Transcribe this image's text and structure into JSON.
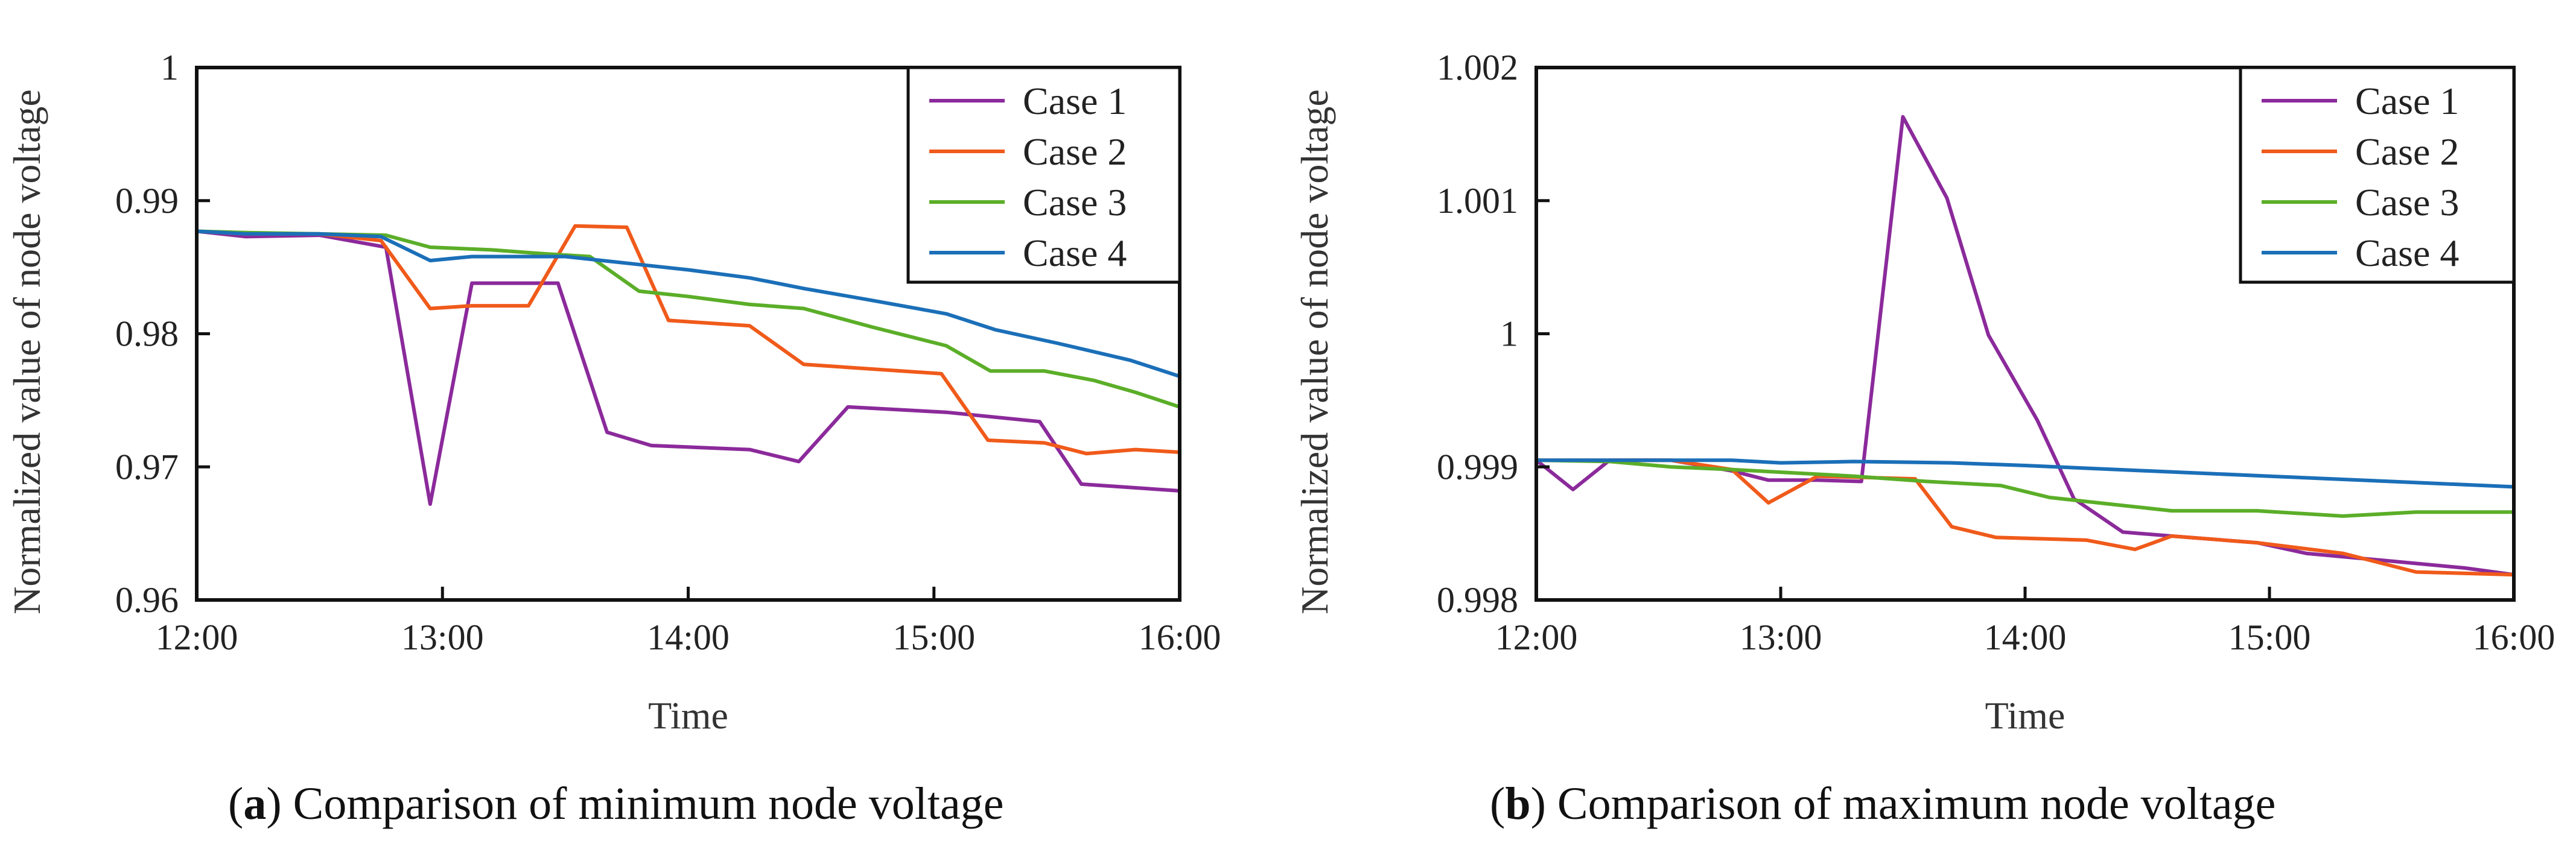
{
  "chart_data": [
    {
      "type": "line",
      "caption": {
        "letter": "a",
        "text": "Comparison of minimum node voltage"
      },
      "xlabel": "Time",
      "ylabel": "Normalized value of node voltage",
      "xlim": [
        12,
        16
      ],
      "ylim": [
        0.96,
        1
      ],
      "xticks": [
        {
          "value": 12,
          "label": "12:00"
        },
        {
          "value": 13,
          "label": "13:00"
        },
        {
          "value": 14,
          "label": "14:00"
        },
        {
          "value": 15,
          "label": "15:00"
        },
        {
          "value": 16,
          "label": "16:00"
        }
      ],
      "yticks": [
        {
          "value": 0.96,
          "label": "0.96"
        },
        {
          "value": 0.97,
          "label": "0.97"
        },
        {
          "value": 0.98,
          "label": "0.98"
        },
        {
          "value": 0.99,
          "label": "0.99"
        },
        {
          "value": 1,
          "label": "1"
        }
      ],
      "legend_position": "top-right",
      "series": [
        {
          "name": "Case 1",
          "color": "#8B2A9B",
          "x": [
            12,
            12.2,
            12.5,
            12.77,
            12.95,
            13.12,
            13.47,
            13.67,
            13.85,
            14.25,
            14.45,
            14.65,
            15.05,
            15.43,
            15.6,
            16
          ],
          "y": [
            0.9877,
            0.9873,
            0.9874,
            0.9865,
            0.9672,
            0.9838,
            0.9838,
            0.9726,
            0.9716,
            0.9713,
            0.9704,
            0.9745,
            0.9741,
            0.9734,
            0.9687,
            0.9682
          ]
        },
        {
          "name": "Case 2",
          "color": "#F05A1A",
          "x": [
            12,
            12.2,
            12.5,
            12.75,
            12.95,
            13.12,
            13.35,
            13.54,
            13.75,
            13.92,
            14.25,
            14.47,
            15.03,
            15.22,
            15.45,
            15.62,
            15.82,
            16
          ],
          "y": [
            0.9877,
            0.9875,
            0.9875,
            0.987,
            0.9819,
            0.9821,
            0.9821,
            0.9881,
            0.988,
            0.981,
            0.9806,
            0.9777,
            0.977,
            0.972,
            0.9718,
            0.971,
            0.9713,
            0.9711
          ]
        },
        {
          "name": "Case 3",
          "color": "#5BAE28",
          "x": [
            12,
            12.2,
            12.5,
            12.77,
            12.95,
            13.2,
            13.42,
            13.6,
            13.8,
            14.0,
            14.25,
            14.47,
            14.75,
            15.05,
            15.23,
            15.45,
            15.65,
            15.82,
            16
          ],
          "y": [
            0.9877,
            0.9876,
            0.9875,
            0.9874,
            0.9865,
            0.9863,
            0.986,
            0.9858,
            0.9832,
            0.9828,
            0.9822,
            0.9819,
            0.9805,
            0.9791,
            0.9772,
            0.9772,
            0.9765,
            0.9756,
            0.9745
          ]
        },
        {
          "name": "Case 4",
          "color": "#1B6FB8",
          "x": [
            12,
            12.2,
            12.5,
            12.75,
            12.95,
            13.12,
            13.5,
            13.8,
            14.0,
            14.25,
            14.47,
            14.75,
            15.05,
            15.25,
            15.5,
            15.8,
            16
          ],
          "y": [
            0.9877,
            0.9875,
            0.9875,
            0.9873,
            0.9855,
            0.9858,
            0.9858,
            0.9852,
            0.9848,
            0.9842,
            0.9834,
            0.9825,
            0.9815,
            0.9803,
            0.9793,
            0.978,
            0.9768
          ]
        }
      ]
    },
    {
      "type": "line",
      "caption": {
        "letter": "b",
        "text": "Comparison of maximum node voltage"
      },
      "xlabel": "Time",
      "ylabel": "Normalized value of node voltage",
      "xlim": [
        12,
        16
      ],
      "ylim": [
        0.998,
        1.002
      ],
      "xticks": [
        {
          "value": 12,
          "label": "12:00"
        },
        {
          "value": 13,
          "label": "13:00"
        },
        {
          "value": 14,
          "label": "14:00"
        },
        {
          "value": 15,
          "label": "15:00"
        },
        {
          "value": 16,
          "label": "16:00"
        }
      ],
      "yticks": [
        {
          "value": 0.998,
          "label": "0.998"
        },
        {
          "value": 0.999,
          "label": "0.999"
        },
        {
          "value": 1,
          "label": "1"
        },
        {
          "value": 1.001,
          "label": "1.001"
        },
        {
          "value": 1.002,
          "label": "1.002"
        }
      ],
      "legend_position": "top-right",
      "series": [
        {
          "name": "Case 1",
          "color": "#8B2A9B",
          "x": [
            12,
            12.15,
            12.3,
            12.55,
            12.8,
            12.95,
            13.15,
            13.33,
            13.5,
            13.68,
            13.85,
            14.05,
            14.2,
            14.4,
            14.6,
            14.95,
            15.15,
            15.45,
            15.8,
            16
          ],
          "y": [
            0.99905,
            0.99883,
            0.99905,
            0.99905,
            0.99897,
            0.9989,
            0.9989,
            0.99889,
            1.00163,
            1.00102,
            0.99999,
            0.99935,
            0.99876,
            0.99851,
            0.99848,
            0.99843,
            0.99835,
            0.9983,
            0.99824,
            0.99819
          ]
        },
        {
          "name": "Case 2",
          "color": "#F05A1A",
          "x": [
            12,
            12.3,
            12.55,
            12.8,
            12.95,
            13.15,
            13.55,
            13.7,
            13.88,
            14.25,
            14.45,
            14.6,
            14.95,
            15.3,
            15.6,
            16
          ],
          "y": [
            0.99905,
            0.99905,
            0.99905,
            0.99898,
            0.99873,
            0.99893,
            0.99891,
            0.99855,
            0.99847,
            0.99845,
            0.99838,
            0.99848,
            0.99843,
            0.99835,
            0.99821,
            0.99819
          ]
        },
        {
          "name": "Case 3",
          "color": "#5BAE28",
          "x": [
            12,
            12.3,
            12.55,
            12.8,
            13.0,
            13.3,
            13.6,
            13.9,
            14.1,
            14.35,
            14.6,
            14.95,
            15.3,
            15.6,
            16
          ],
          "y": [
            0.99905,
            0.99904,
            0.999,
            0.99898,
            0.99896,
            0.99893,
            0.99889,
            0.99886,
            0.99877,
            0.99872,
            0.99867,
            0.99867,
            0.99863,
            0.99866,
            0.99866
          ]
        },
        {
          "name": "Case 4",
          "color": "#1B6FB8",
          "x": [
            12,
            12.5,
            12.8,
            13.0,
            13.3,
            13.7,
            14.0,
            14.5,
            15.0,
            15.5,
            16
          ],
          "y": [
            0.99905,
            0.99905,
            0.99905,
            0.99903,
            0.99904,
            0.99903,
            0.99901,
            0.99897,
            0.99893,
            0.99889,
            0.99885
          ]
        }
      ]
    }
  ]
}
